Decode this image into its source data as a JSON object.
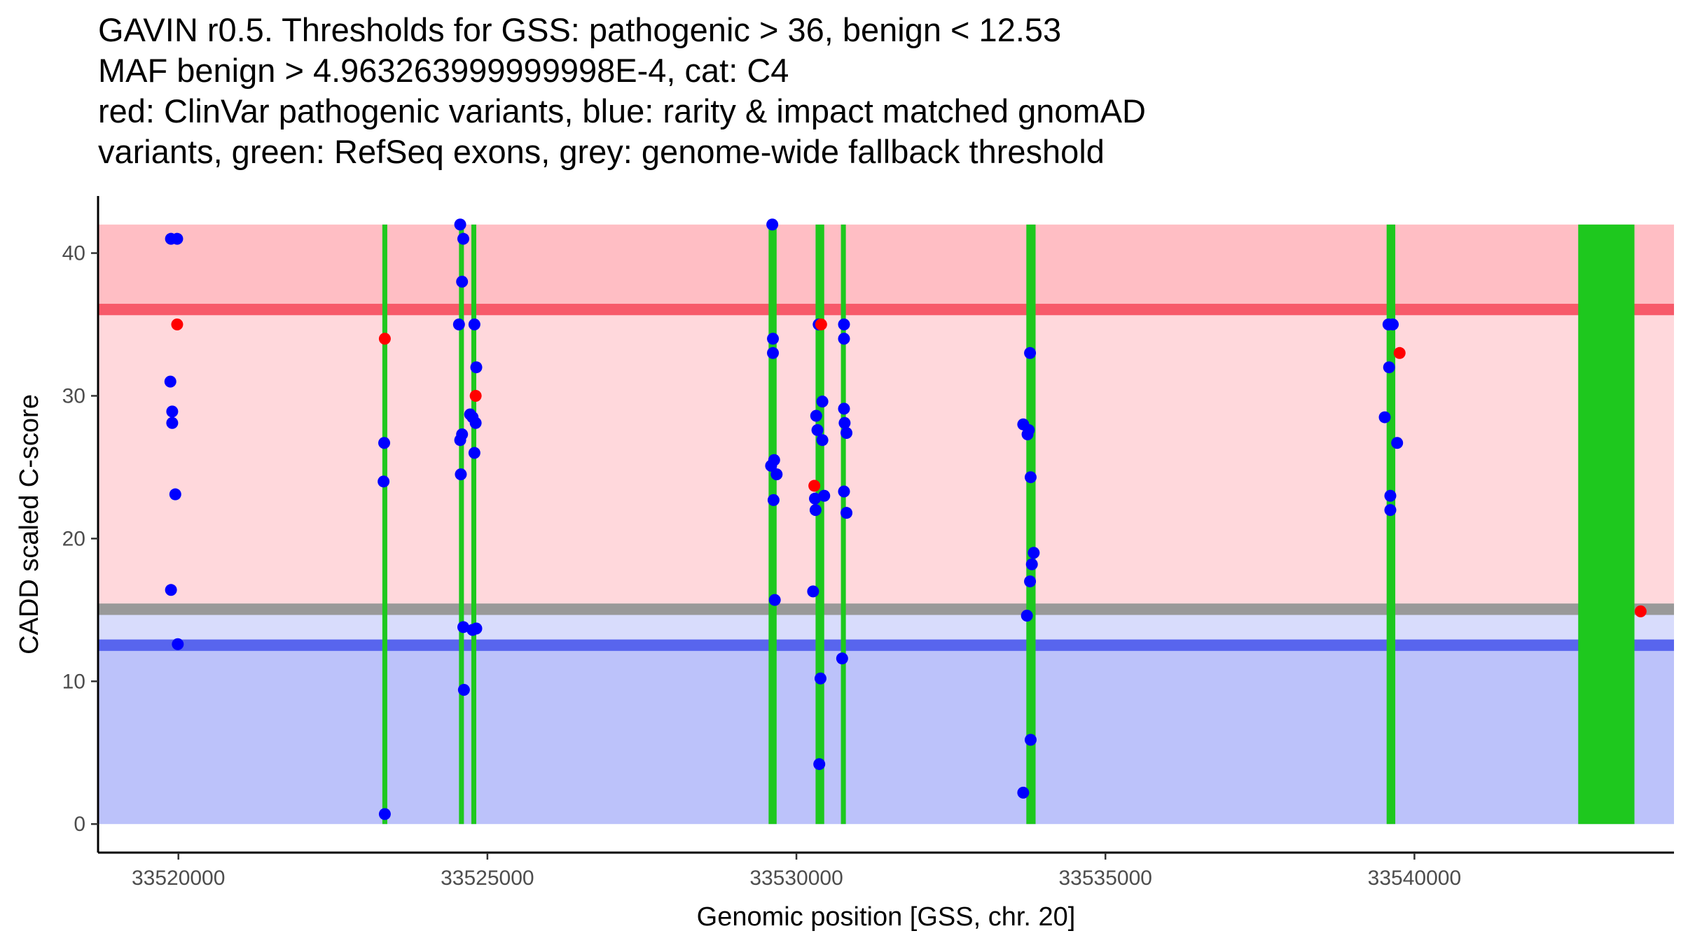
{
  "title_lines": [
    "GAVIN r0.5. Thresholds for GSS: pathogenic > 36, benign < 12.53",
    "MAF benign > 4.963263999999998E-4, cat: C4",
    "red: ClinVar pathogenic variants, blue: rarity & impact matched gnomAD",
    "variants, green: RefSeq exons, grey: genome-wide fallback threshold"
  ],
  "chart_data": {
    "type": "scatter",
    "xlabel": "Genomic position [GSS, chr. 20]",
    "ylabel": "CADD scaled C-score",
    "xlim": [
      33518700,
      33544200
    ],
    "ylim": [
      -2,
      44
    ],
    "x_ticks": [
      33520000,
      33525000,
      33530000,
      33535000,
      33540000
    ],
    "x_tick_labels": [
      "33520000",
      "33525000",
      "33530000",
      "33535000",
      "33540000"
    ],
    "y_ticks": [
      0,
      10,
      20,
      30,
      40
    ],
    "y_tick_labels": [
      "0",
      "10",
      "20",
      "30",
      "40"
    ],
    "colors": {
      "pathogenic_zone": "#ffd8dc",
      "pathogenic_strong": "#ffbec4",
      "benign_zone": "#bcc2fa",
      "fallback_zone": "#d8dcfc",
      "pathogenic_line": "#f75a6a",
      "benign_line": "#5865ee",
      "fallback_line": "#999999",
      "exon": "#1ec81e",
      "clinvar": "#ff0000",
      "gnomad": "#0000ff"
    },
    "bands": [
      {
        "name": "pathogenic-strong-zone",
        "y0": 36,
        "y1": 42,
        "color_key": "pathogenic_strong"
      },
      {
        "name": "pathogenic-zone",
        "y0": 15.1,
        "y1": 36,
        "color_key": "pathogenic_zone"
      },
      {
        "name": "fallback-zone",
        "y0": 12.53,
        "y1": 15.1,
        "color_key": "fallback_zone"
      },
      {
        "name": "benign-zone",
        "y0": 0,
        "y1": 12.53,
        "color_key": "benign_zone"
      }
    ],
    "thresholds": [
      {
        "name": "pathogenic-threshold-line",
        "y": 36.05,
        "half_width": 0.4,
        "color_key": "pathogenic_line"
      },
      {
        "name": "fallback-threshold-line",
        "y": 15.05,
        "half_width": 0.4,
        "color_key": "fallback_line"
      },
      {
        "name": "benign-threshold-line",
        "y": 12.53,
        "half_width": 0.4,
        "color_key": "benign_line"
      }
    ],
    "exons": [
      [
        33523300,
        33523380
      ],
      [
        33524540,
        33524620
      ],
      [
        33524740,
        33524820
      ],
      [
        33529550,
        33529680
      ],
      [
        33530310,
        33530450
      ],
      [
        33530720,
        33530800
      ],
      [
        33533720,
        33533870
      ],
      [
        33539550,
        33539690
      ],
      [
        33542650,
        33543560
      ]
    ],
    "exon_y_range": [
      0,
      42
    ],
    "series": [
      {
        "name": "ClinVar pathogenic variants",
        "color_key": "clinvar",
        "points": [
          [
            33519980,
            35.0
          ],
          [
            33523340,
            34.0
          ],
          [
            33524810,
            30.0
          ],
          [
            33530290,
            23.7
          ],
          [
            33530400,
            35.0
          ],
          [
            33539760,
            33.0
          ],
          [
            33543660,
            14.9
          ]
        ]
      },
      {
        "name": "rarity & impact matched gnomAD variants",
        "color_key": "gnomad",
        "points": [
          [
            33519880,
            41.0
          ],
          [
            33519980,
            41.0
          ],
          [
            33519870,
            31.0
          ],
          [
            33519900,
            28.9
          ],
          [
            33519900,
            28.1
          ],
          [
            33519950,
            23.1
          ],
          [
            33519880,
            16.4
          ],
          [
            33519990,
            12.6
          ],
          [
            33523330,
            26.7
          ],
          [
            33523320,
            24.0
          ],
          [
            33523340,
            0.7
          ],
          [
            33524560,
            42.0
          ],
          [
            33524610,
            41.0
          ],
          [
            33524590,
            38.0
          ],
          [
            33524540,
            35.0
          ],
          [
            33524790,
            35.0
          ],
          [
            33524820,
            32.0
          ],
          [
            33524720,
            28.7
          ],
          [
            33524760,
            28.5
          ],
          [
            33524810,
            28.1
          ],
          [
            33524590,
            27.3
          ],
          [
            33524560,
            26.9
          ],
          [
            33524790,
            26.0
          ],
          [
            33524570,
            24.5
          ],
          [
            33524610,
            13.8
          ],
          [
            33524760,
            13.6
          ],
          [
            33524820,
            13.7
          ],
          [
            33524620,
            9.4
          ],
          [
            33529610,
            42.0
          ],
          [
            33529620,
            34.0
          ],
          [
            33529620,
            33.0
          ],
          [
            33529640,
            25.5
          ],
          [
            33529590,
            25.1
          ],
          [
            33529680,
            24.5
          ],
          [
            33529630,
            22.7
          ],
          [
            33529650,
            15.7
          ],
          [
            33530360,
            35.0
          ],
          [
            33530420,
            29.6
          ],
          [
            33530320,
            28.6
          ],
          [
            33530340,
            27.6
          ],
          [
            33530420,
            26.9
          ],
          [
            33530450,
            23.0
          ],
          [
            33530300,
            22.8
          ],
          [
            33530310,
            22.0
          ],
          [
            33530270,
            16.3
          ],
          [
            33530390,
            10.2
          ],
          [
            33530370,
            4.2
          ],
          [
            33530770,
            35.0
          ],
          [
            33530770,
            34.0
          ],
          [
            33530770,
            29.1
          ],
          [
            33530780,
            28.1
          ],
          [
            33530810,
            27.4
          ],
          [
            33530770,
            23.3
          ],
          [
            33530810,
            21.8
          ],
          [
            33530740,
            11.6
          ],
          [
            33533670,
            28.0
          ],
          [
            33533760,
            27.6
          ],
          [
            33533740,
            27.3
          ],
          [
            33533780,
            33.0
          ],
          [
            33533790,
            24.3
          ],
          [
            33533840,
            19.0
          ],
          [
            33533810,
            18.2
          ],
          [
            33533780,
            17.0
          ],
          [
            33533730,
            14.6
          ],
          [
            33533790,
            5.9
          ],
          [
            33533670,
            2.2
          ],
          [
            33539580,
            35.0
          ],
          [
            33539650,
            35.0
          ],
          [
            33539590,
            32.0
          ],
          [
            33539520,
            28.5
          ],
          [
            33539720,
            26.7
          ],
          [
            33539610,
            23.0
          ],
          [
            33539610,
            22.0
          ]
        ]
      }
    ]
  }
}
